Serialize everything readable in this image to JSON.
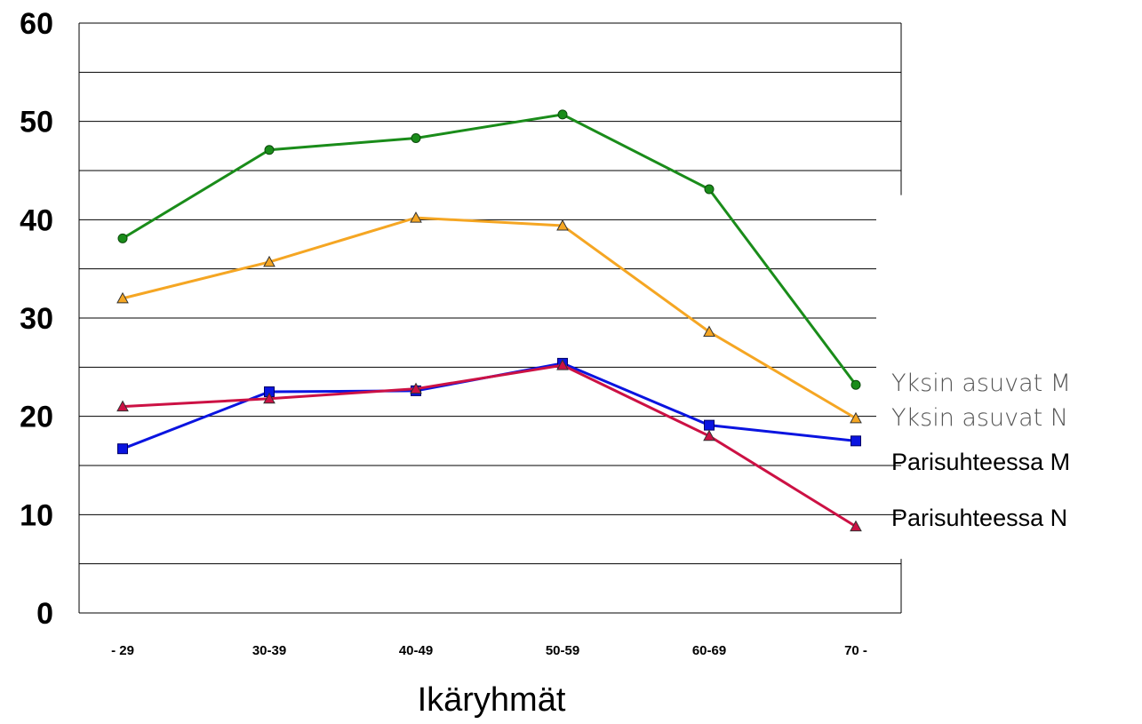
{
  "chart_data": {
    "type": "line",
    "categories": [
      "- 29",
      "30-39",
      "40-49",
      "50-59",
      "60-69",
      "70 -"
    ],
    "xlabel": "Ikäryhmät",
    "ylabel": "",
    "ylim": [
      0,
      60
    ],
    "yticks": [
      "0",
      "10",
      "20",
      "30",
      "40",
      "50",
      "60"
    ],
    "grid": true,
    "legend_position": "right",
    "series": [
      {
        "name": "Yksin asuvat M",
        "color": "#1a8c1a",
        "marker": "circle",
        "values": [
          38.1,
          47.1,
          48.3,
          50.7,
          43.1,
          23.2
        ]
      },
      {
        "name": "Yksin asuvat N",
        "color": "#f5a623",
        "marker": "triangle",
        "values": [
          32.0,
          35.7,
          40.2,
          39.4,
          28.6,
          19.8
        ]
      },
      {
        "name": "Parisuhteessa M",
        "color": "#0a14e0",
        "marker": "square",
        "values": [
          16.7,
          22.5,
          22.6,
          25.4,
          19.1,
          17.5
        ]
      },
      {
        "name": "Parisuhteessa N",
        "color": "#cc1144",
        "marker": "triangle",
        "values": [
          21.0,
          21.8,
          22.8,
          25.2,
          18.0,
          8.8
        ]
      }
    ]
  }
}
